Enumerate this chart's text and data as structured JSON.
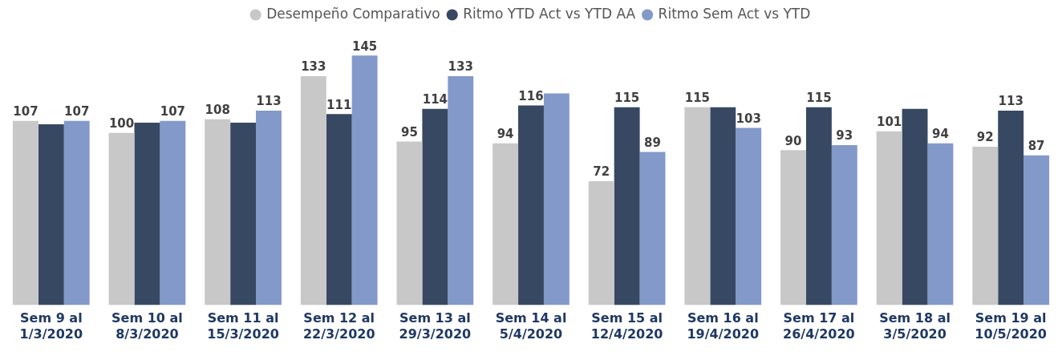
{
  "chart_data": {
    "type": "bar",
    "categories": [
      "Sem 9 al\n1/3/2020",
      "Sem 10 al\n8/3/2020",
      "Sem 11 al\n15/3/2020",
      "Sem 12 al\n22/3/2020",
      "Sem 13 al\n29/3/2020",
      "Sem 14 al\n5/4/2020",
      "Sem 15 al\n12/4/2020",
      "Sem 16 al\n19/4/2020",
      "Sem 17 al\n26/4/2020",
      "Sem 18 al\n3/5/2020",
      "Sem 19 al\n10/5/2020"
    ],
    "series": [
      {
        "name": "Desempeño Comparativo",
        "color": "#c8c8c8",
        "values": [
          107,
          100,
          108,
          133,
          95,
          94,
          72,
          115,
          90,
          101,
          92
        ],
        "value_labels": [
          "107",
          "100",
          "108",
          "133",
          "95",
          "94",
          "72",
          "115",
          "90",
          "101",
          "92"
        ]
      },
      {
        "name": "Ritmo YTD Act vs YTD AA",
        "color": "#374862",
        "values": [
          105,
          106,
          106,
          111,
          114,
          116,
          115,
          115,
          115,
          114,
          113
        ],
        "value_labels": [
          null,
          null,
          null,
          "111",
          "114",
          "116",
          "115",
          null,
          "115",
          null,
          "113"
        ]
      },
      {
        "name": "Ritmo Sem Act vs YTD",
        "color": "#8399c9",
        "values": [
          107,
          107,
          113,
          145,
          133,
          123,
          89,
          103,
          93,
          94,
          87
        ],
        "value_labels": [
          "107",
          "107",
          "113",
          "145",
          "133",
          null,
          "89",
          "103",
          "93",
          "94",
          "87"
        ]
      }
    ],
    "legend": "top",
    "grid": false
  }
}
